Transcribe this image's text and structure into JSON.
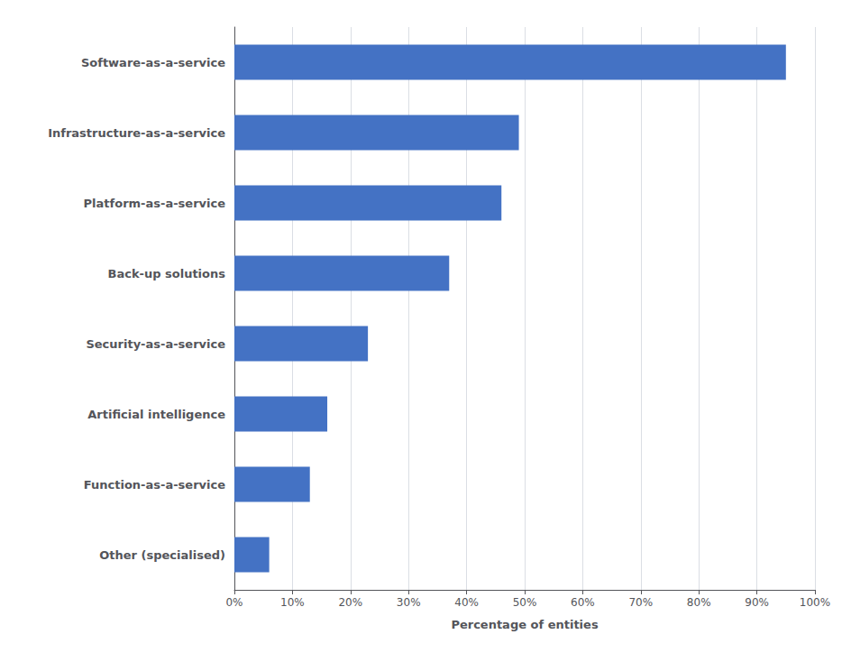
{
  "chart_data": {
    "type": "bar",
    "orientation": "horizontal",
    "categories": [
      "Other (specialised)",
      "Function-as-a-service",
      "Artificial intelligence",
      "Security-as-a-service",
      "Back-up solutions",
      "Platform-as-a-service",
      "Infrastructure-as-a-service",
      "Software-as-a-service"
    ],
    "values": [
      6,
      13,
      16,
      23,
      37,
      46,
      49,
      95
    ],
    "color": "#4472C4",
    "xlabel": "Percentage of entities",
    "xlim": [
      0,
      100
    ],
    "xticks": [
      {
        "value": 0,
        "label": "0%"
      },
      {
        "value": 10,
        "label": "10%"
      },
      {
        "value": 20,
        "label": "20%"
      },
      {
        "value": 30,
        "label": "30%"
      },
      {
        "value": 40,
        "label": "40%"
      },
      {
        "value": 50,
        "label": "50%"
      },
      {
        "value": 60,
        "label": "60%"
      },
      {
        "value": 70,
        "label": "70%"
      },
      {
        "value": 80,
        "label": "80%"
      },
      {
        "value": 90,
        "label": "90%"
      },
      {
        "value": 100,
        "label": "100%"
      }
    ],
    "grid": true
  }
}
